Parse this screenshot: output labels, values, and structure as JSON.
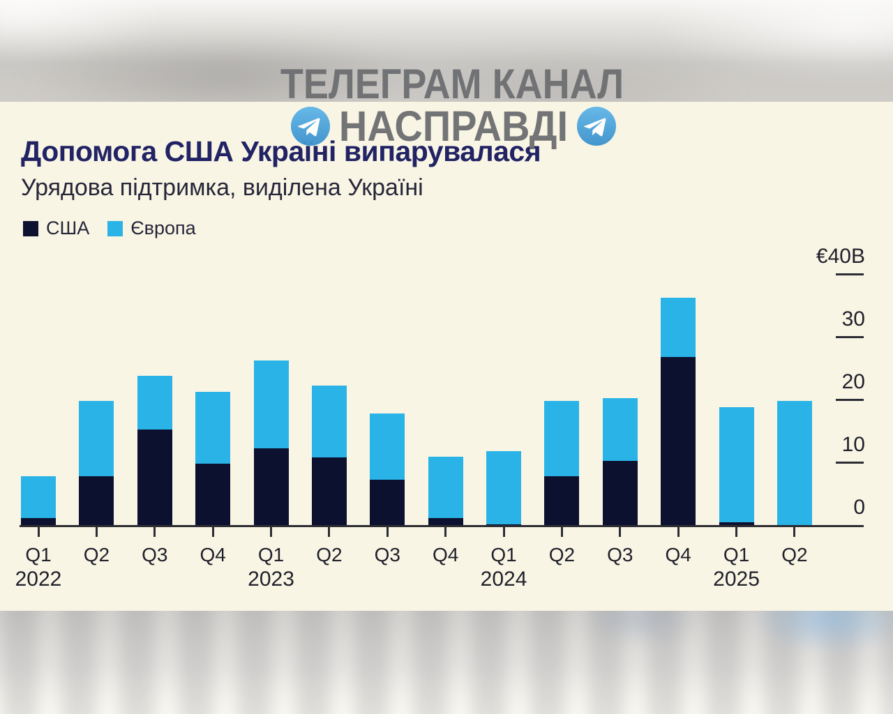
{
  "watermark": {
    "line1": "ТЕЛЕГРАМ КАНАЛ",
    "line2": "НАСПРАВДІ",
    "icon": "telegram-paper-plane",
    "icon_color": "#4aa2d9"
  },
  "header": {
    "title": "Допомога США Україні випарувалася",
    "subtitle": "Урядова підтримка, виділена Україні"
  },
  "legend": [
    {
      "label": "США",
      "color": "#0d1130"
    },
    {
      "label": "Європа",
      "color": "#29b3e7"
    }
  ],
  "colors": {
    "background_card": "#f9f5e4",
    "us_bar": "#0d1130",
    "europe_bar": "#29b3e7",
    "title_text": "#212364",
    "axis_text": "#1f1f2b",
    "axis_line": "#2c2c34",
    "watermark_gray": "#6e6f72"
  },
  "chart_data": {
    "type": "bar",
    "stacked": true,
    "title": "Допомога США Україні випарувалася",
    "subtitle": "Урядова підтримка, виділена Україні",
    "unit": "€ billions",
    "categories": [
      "Q1",
      "Q2",
      "Q3",
      "Q4",
      "Q1",
      "Q2",
      "Q3",
      "Q4",
      "Q1",
      "Q2",
      "Q3",
      "Q4",
      "Q1",
      "Q2"
    ],
    "year_breaks": [
      {
        "index": 0,
        "label": "2022"
      },
      {
        "index": 4,
        "label": "2023"
      },
      {
        "index": 8,
        "label": "2024"
      },
      {
        "index": 12,
        "label": "2025"
      }
    ],
    "series": [
      {
        "name": "США",
        "color": "#0d1130",
        "values": [
          1.3,
          8,
          15.5,
          10,
          12.5,
          11,
          7.5,
          1.3,
          0.3,
          8,
          10.5,
          27,
          0.7,
          0
        ]
      },
      {
        "name": "Європа",
        "color": "#29b3e7",
        "values": [
          6.7,
          12,
          8.5,
          11.5,
          14,
          11.5,
          10.5,
          9.8,
          11.7,
          12,
          10,
          9.5,
          18.3,
          20
        ]
      }
    ],
    "totals": [
      8,
      20,
      24,
      21.5,
      26.5,
      22.5,
      18,
      11.1,
      12,
      20,
      20.5,
      36.5,
      19,
      20
    ],
    "y_axis": {
      "ticks": [
        {
          "label": "€40B",
          "value": 40
        },
        {
          "label": "30",
          "value": 30
        },
        {
          "label": "20",
          "value": 20
        },
        {
          "label": "10",
          "value": 10
        },
        {
          "label": "0",
          "value": 0
        }
      ],
      "max": 40,
      "side": "right",
      "grid": false
    },
    "legend_position": "top-left"
  }
}
